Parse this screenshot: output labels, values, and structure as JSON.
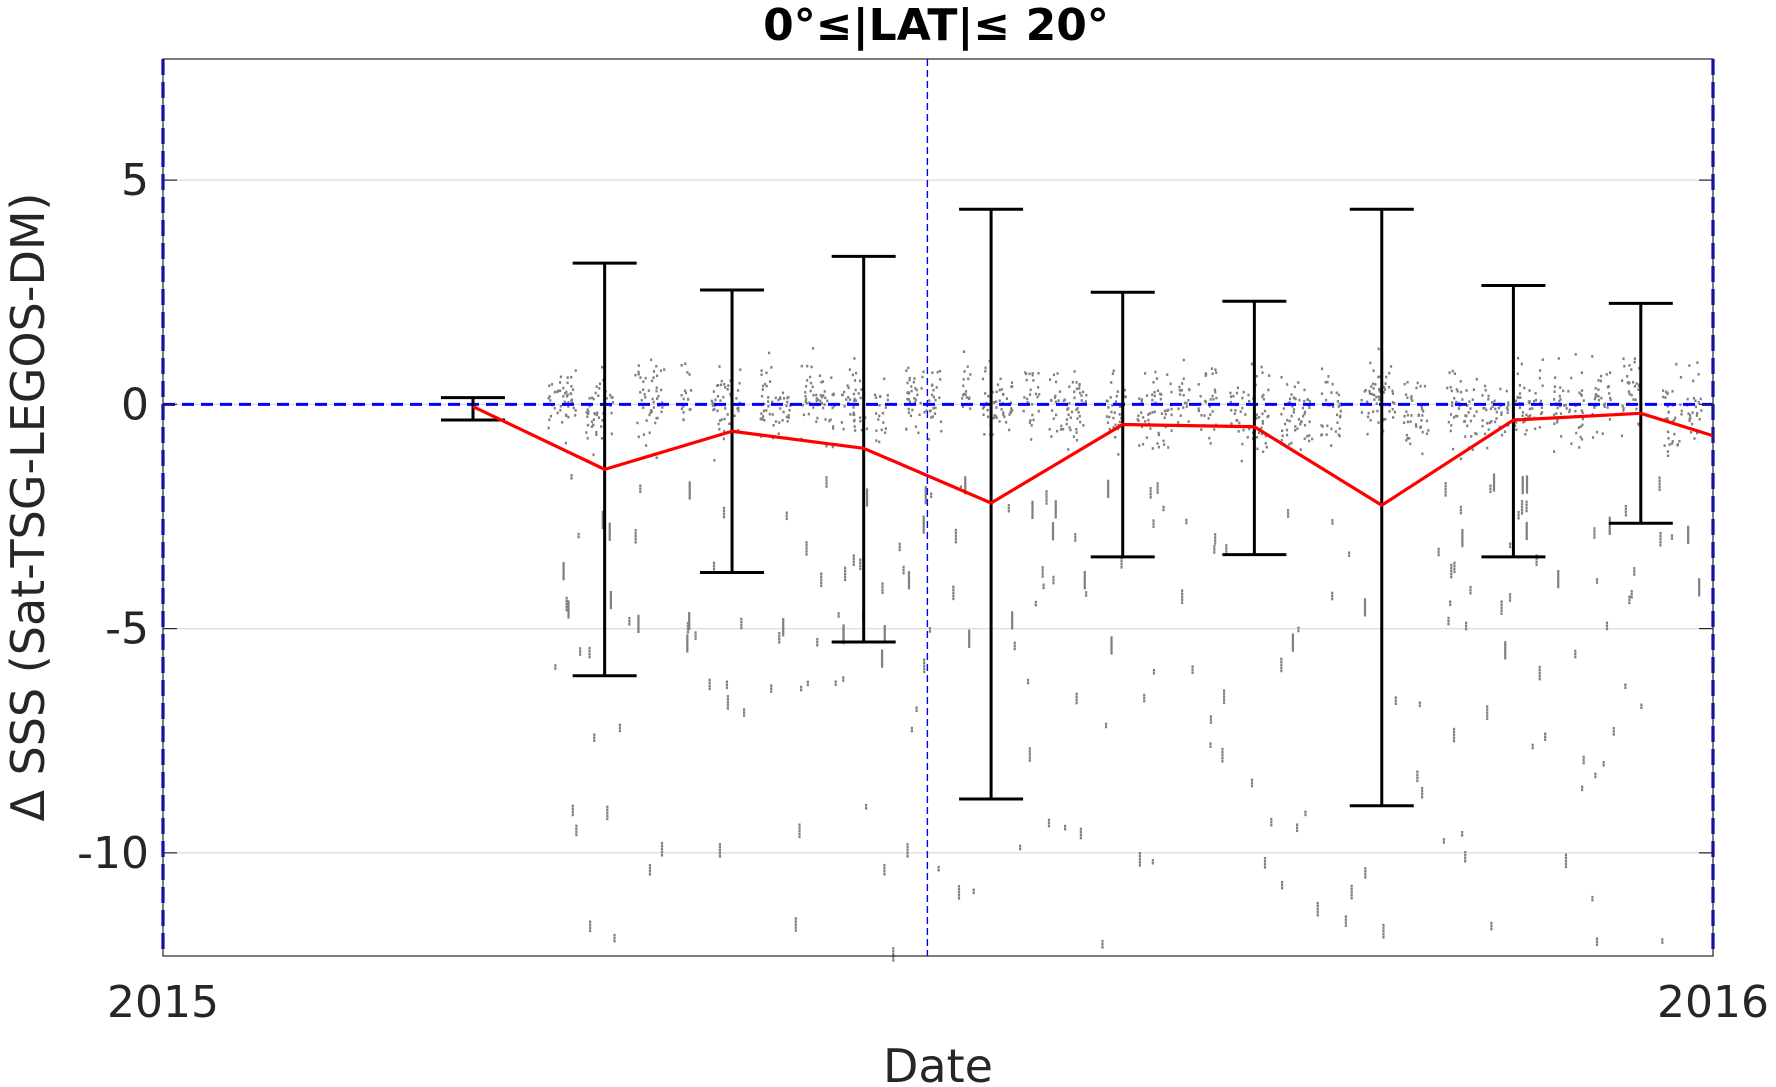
{
  "chart_data": {
    "type": "scatter",
    "title": "0°≤|LAT|≤ 20°",
    "xlabel": "Date",
    "ylabel": "Δ SSS (Sat-TSG-LEGOS-DM)",
    "x_axis": {
      "kind": "date",
      "range": [
        "2015-01-01",
        "2016-01-01"
      ],
      "ticks": [
        {
          "value": "2015-01-01",
          "label": "2015"
        },
        {
          "value": "2016-01-01",
          "label": "2016"
        }
      ]
    },
    "y_axis": {
      "range": [
        -12.3,
        7.7
      ],
      "ticks": [
        {
          "value": 5,
          "label": "5"
        },
        {
          "value": 0,
          "label": "0"
        },
        {
          "value": -5,
          "label": "-5"
        },
        {
          "value": -10,
          "label": "-10"
        }
      ],
      "grid": true
    },
    "reference_lines": [
      {
        "kind": "horizontal",
        "y": 0,
        "color": "#0000ff",
        "style": "dashed"
      },
      {
        "kind": "vertical",
        "x": "2015-06-30",
        "color": "#0000ff",
        "style": "dashed-thin"
      },
      {
        "kind": "vertical",
        "x": "2015-01-01",
        "color": "#0000ff",
        "style": "dashed"
      },
      {
        "kind": "vertical",
        "x": "2016-01-01",
        "color": "#0000ff",
        "style": "dashed"
      }
    ],
    "scatter_color": "#808080",
    "scatter_points_note": "dense gray point cloud mostly between -1.5 and 1.5, with sparse outliers down to about -12",
    "series": [
      {
        "kind": "line",
        "color": "#ff0000",
        "x": [
          "2015-03-15",
          "2015-04-15",
          "2015-05-15",
          "2015-06-15",
          "2015-07-15",
          "2015-08-15",
          "2015-09-15",
          "2015-10-15",
          "2015-11-15",
          "2015-12-15",
          "2016-01-01"
        ],
        "values": [
          -0.05,
          -1.45,
          -0.6,
          -0.98,
          -2.2,
          -0.45,
          -0.5,
          -2.25,
          -0.35,
          -0.2,
          -0.7
        ]
      },
      {
        "kind": "errorbar",
        "color": "#000000",
        "x": [
          "2015-03-15",
          "2015-04-15",
          "2015-05-15",
          "2015-06-15",
          "2015-07-15",
          "2015-08-15",
          "2015-09-15",
          "2015-10-15",
          "2015-11-15",
          "2015-12-15"
        ],
        "upper": [
          0.15,
          3.15,
          2.55,
          3.3,
          4.35,
          2.5,
          2.3,
          4.35,
          2.65,
          2.25
        ],
        "lower": [
          -0.35,
          -6.05,
          -3.75,
          -5.3,
          -8.8,
          -3.4,
          -3.35,
          -8.95,
          -3.4,
          -2.65
        ]
      }
    ]
  }
}
